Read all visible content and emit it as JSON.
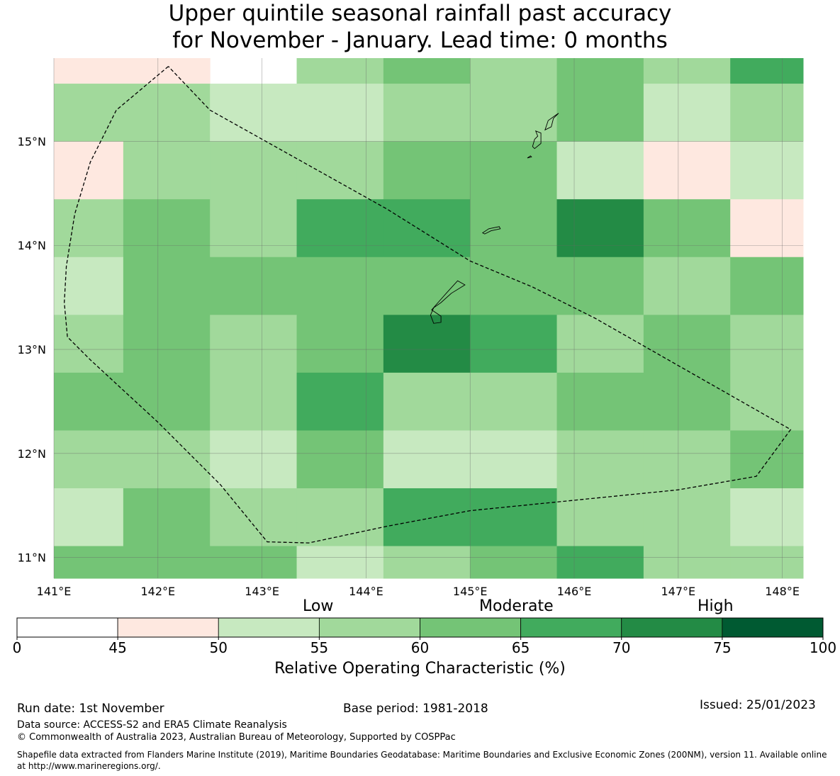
{
  "title": {
    "line1": "Upper quintile seasonal rainfall past accuracy",
    "line2": "for November - January. Lead time: 0 months"
  },
  "map": {
    "lon_range": [
      141,
      148.2
    ],
    "lat_range": [
      10.8,
      15.8
    ],
    "lon_ticks": [
      "141°E",
      "142°E",
      "143°E",
      "144°E",
      "145°E",
      "146°E",
      "147°E",
      "148°E"
    ],
    "lat_ticks": [
      "11°N",
      "12°N",
      "13°N",
      "14°N",
      "15°N"
    ],
    "grid_rows_north_to_south": [
      [
        47,
        47,
        null,
        57,
        62,
        57,
        62,
        57,
        67
      ],
      [
        57,
        57,
        52,
        52,
        57,
        57,
        62,
        52,
        57
      ],
      [
        47,
        57,
        57,
        57,
        62,
        62,
        52,
        47,
        52
      ],
      [
        57,
        62,
        57,
        67,
        67,
        62,
        72,
        62,
        47
      ],
      [
        52,
        62,
        62,
        62,
        62,
        62,
        62,
        57,
        62
      ],
      [
        57,
        62,
        57,
        62,
        72,
        67,
        57,
        62,
        57
      ],
      [
        62,
        62,
        57,
        67,
        57,
        57,
        62,
        62,
        57
      ],
      [
        57,
        57,
        52,
        62,
        52,
        52,
        57,
        57,
        62
      ],
      [
        52,
        62,
        57,
        57,
        67,
        67,
        57,
        57,
        52
      ],
      [
        62,
        62,
        62,
        52,
        57,
        62,
        67,
        57,
        57
      ]
    ],
    "eez_boundary_lonlat": [
      [
        142.1,
        15.72
      ],
      [
        141.6,
        15.3
      ],
      [
        141.35,
        14.8
      ],
      [
        141.2,
        14.3
      ],
      [
        141.12,
        13.8
      ],
      [
        141.1,
        13.45
      ],
      [
        141.13,
        13.12
      ],
      [
        141.35,
        12.9
      ],
      [
        142.0,
        12.3
      ],
      [
        142.6,
        11.7
      ],
      [
        143.05,
        11.15
      ],
      [
        143.45,
        11.14
      ],
      [
        144.2,
        11.3
      ],
      [
        145.0,
        11.45
      ],
      [
        146.0,
        11.55
      ],
      [
        147.0,
        11.65
      ],
      [
        147.75,
        11.78
      ],
      [
        148.08,
        12.23
      ],
      [
        146.2,
        13.3
      ],
      [
        145.6,
        13.6
      ],
      [
        145.0,
        13.85
      ],
      [
        144.2,
        14.35
      ],
      [
        142.5,
        15.3
      ],
      [
        142.1,
        15.72
      ]
    ],
    "islands_lonlat": [
      [
        [
          144.65,
          13.25
        ],
        [
          144.62,
          13.33
        ],
        [
          144.65,
          13.4
        ],
        [
          144.72,
          13.45
        ],
        [
          144.82,
          13.54
        ],
        [
          144.95,
          13.62
        ],
        [
          144.88,
          13.66
        ],
        [
          144.78,
          13.55
        ],
        [
          144.7,
          13.46
        ],
        [
          144.63,
          13.38
        ],
        [
          144.72,
          13.32
        ],
        [
          144.72,
          13.26
        ],
        [
          144.65,
          13.25
        ]
      ],
      [
        [
          145.12,
          14.12
        ],
        [
          145.18,
          14.16
        ],
        [
          145.28,
          14.18
        ],
        [
          145.29,
          14.16
        ],
        [
          145.2,
          14.14
        ],
        [
          145.14,
          14.11
        ],
        [
          145.12,
          14.12
        ]
      ],
      [
        [
          145.6,
          14.95
        ],
        [
          145.62,
          15.02
        ],
        [
          145.65,
          15.05
        ],
        [
          145.63,
          15.1
        ],
        [
          145.68,
          15.08
        ],
        [
          145.68,
          14.98
        ],
        [
          145.62,
          14.93
        ],
        [
          145.6,
          14.95
        ]
      ],
      [
        [
          145.55,
          14.84
        ],
        [
          145.58,
          14.86
        ],
        [
          145.59,
          14.85
        ],
        [
          145.55,
          14.84
        ]
      ],
      [
        [
          145.72,
          15.11
        ],
        [
          145.75,
          15.2
        ],
        [
          145.82,
          15.25
        ],
        [
          145.85,
          15.27
        ],
        [
          145.8,
          15.22
        ],
        [
          145.78,
          15.14
        ],
        [
          145.72,
          15.11
        ]
      ]
    ]
  },
  "colorbar": {
    "category_low": "Low",
    "category_moderate": "Moderate",
    "category_high": "High",
    "bounds": [
      0,
      45,
      50,
      55,
      60,
      65,
      70,
      75,
      100
    ],
    "tick_labels": [
      "0",
      "45",
      "50",
      "55",
      "60",
      "65",
      "70",
      "75",
      "100"
    ],
    "colors": [
      "#ffffff",
      "#fee8e0",
      "#c7e9c0",
      "#a1d99b",
      "#74c476",
      "#41ab5d",
      "#238b45",
      "#005a32"
    ],
    "label": "Relative Operating Characteristic (%)"
  },
  "footer": {
    "run_date": "Run date: 1st November",
    "base_period": "Base period: 1981-2018",
    "issued": "Issued: 25/01/2023",
    "data_source": "Data source: ACCESS-S2 and ERA5 Climate Reanalysis",
    "copyright": "© Commonwealth of Australia 2023, Australian Bureau of Meteorology, Supported by COSPPac",
    "shapefile": "Shapefile data extracted from Flanders Marine Institute (2019), Maritime Boundaries Geodatabase: Maritime Boundaries and Exclusive Economic Zones (200NM), version 11. Available online at http://www.marineregions.org/."
  }
}
